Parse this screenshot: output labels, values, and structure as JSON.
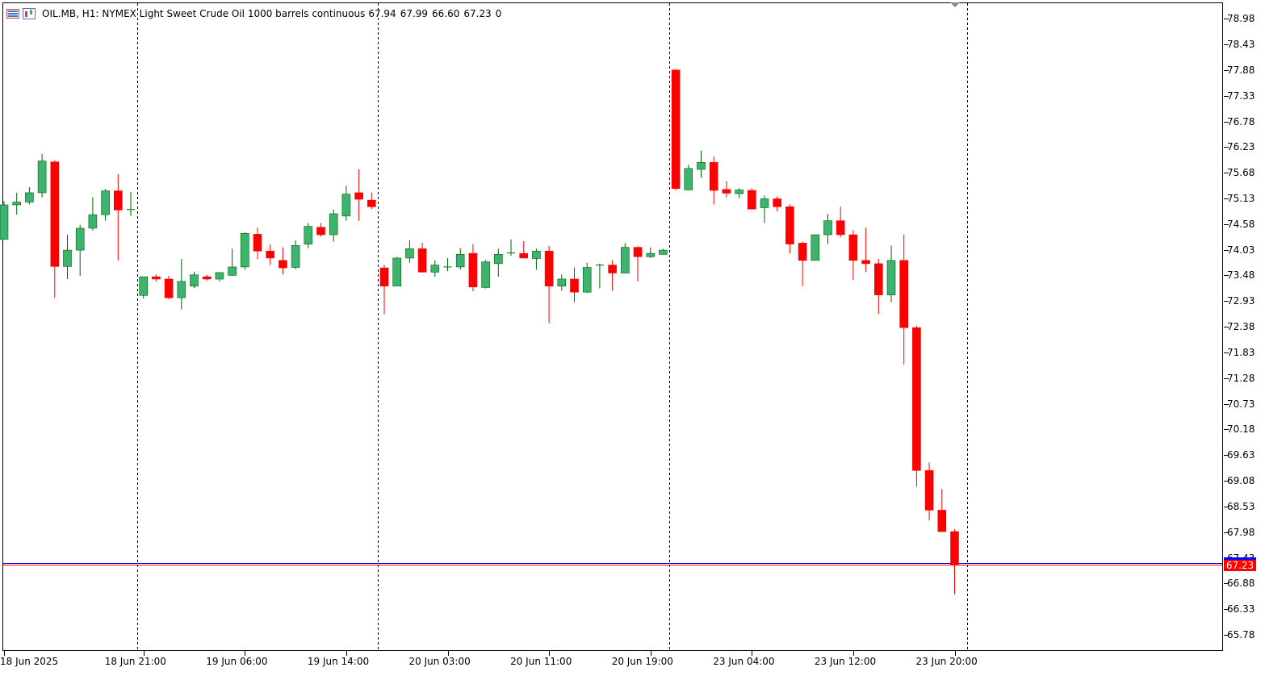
{
  "header": {
    "symbol_label": "OIL.MB, H1:",
    "description": "NYMEX Light Sweet Crude Oil 1000 barrels continuous",
    "ohlc": [
      "67.94",
      "67.99",
      "66.60",
      "67.23"
    ],
    "volume": "0",
    "icon_list": "list-view-icon",
    "icon_chart": "candle-chart-icon"
  },
  "colors": {
    "bull_body": "#3cb371",
    "bear_body": "#ff0000",
    "bull_wick": "#006400",
    "bear_wick": "#ff0000",
    "bid_line": "#ff0000",
    "ask_line": "#0000ff",
    "separator": "#000000",
    "badge": "#ff0000",
    "doji_highlight": "#00e000"
  },
  "price_badge": "67.23",
  "chart_data": {
    "type": "candlestick",
    "title": "",
    "grid": false,
    "ylim": [
      65.4,
      79.26
    ],
    "y_ticks": [
      "78.98",
      "78.43",
      "77.88",
      "77.33",
      "76.78",
      "76.23",
      "75.68",
      "75.13",
      "74.58",
      "74.03",
      "73.48",
      "72.93",
      "72.38",
      "71.83",
      "71.28",
      "70.73",
      "70.18",
      "69.63",
      "69.08",
      "68.53",
      "67.98",
      "67.43",
      "66.88",
      "66.33",
      "65.78"
    ],
    "x_labels": [
      "18 Jun 2025",
      "18 Jun 21:00",
      "19 Jun 06:00",
      "19 Jun 14:00",
      "20 Jun 03:00",
      "20 Jun 11:00",
      "20 Jun 19:00",
      "23 Jun 04:00",
      "23 Jun 12:00",
      "23 Jun 20:00"
    ],
    "x_label_bars": [
      0,
      11,
      19,
      27,
      35,
      43,
      51,
      59,
      67,
      75
    ],
    "session_separator_bars": [
      11,
      30,
      53
    ],
    "future_separator_bar": 76,
    "last_price": 67.23,
    "ask_price": 67.27,
    "candles": [
      [
        74.2,
        75.02,
        74.2,
        74.94
      ],
      [
        74.94,
        75.2,
        74.73,
        75.0
      ],
      [
        75.0,
        75.32,
        74.95,
        75.2
      ],
      [
        75.2,
        76.03,
        75.1,
        75.88
      ],
      [
        75.86,
        75.9,
        72.95,
        73.62
      ],
      [
        73.62,
        74.3,
        73.35,
        73.97
      ],
      [
        73.97,
        74.51,
        73.42,
        74.44
      ],
      [
        74.44,
        75.1,
        74.39,
        74.73
      ],
      [
        74.73,
        75.28,
        74.6,
        75.24
      ],
      [
        75.24,
        75.6,
        73.75,
        74.83
      ],
      [
        74.83,
        75.22,
        74.7,
        74.84
      ],
      [
        73.0,
        73.4,
        72.93,
        73.4
      ],
      [
        73.4,
        73.45,
        73.3,
        73.35
      ],
      [
        73.35,
        73.42,
        72.92,
        72.95
      ],
      [
        72.95,
        73.78,
        72.7,
        73.3
      ],
      [
        73.2,
        73.51,
        73.16,
        73.44
      ],
      [
        73.4,
        73.44,
        73.32,
        73.35
      ],
      [
        73.35,
        73.48,
        73.3,
        73.49
      ],
      [
        73.43,
        74.0,
        73.42,
        73.61
      ],
      [
        73.61,
        74.35,
        73.55,
        74.33
      ],
      [
        74.31,
        74.45,
        73.78,
        73.95
      ],
      [
        73.95,
        74.09,
        73.65,
        73.8
      ],
      [
        73.75,
        74.03,
        73.45,
        73.59
      ],
      [
        73.6,
        74.18,
        73.56,
        74.07
      ],
      [
        74.1,
        74.55,
        74.01,
        74.48
      ],
      [
        74.46,
        74.55,
        74.26,
        74.3
      ],
      [
        74.3,
        74.84,
        74.15,
        74.75
      ],
      [
        74.7,
        75.35,
        74.6,
        75.17
      ],
      [
        75.2,
        75.7,
        74.6,
        75.06
      ],
      [
        75.04,
        75.2,
        74.85,
        74.9
      ],
      [
        73.59,
        73.65,
        72.6,
        73.2
      ],
      [
        73.2,
        73.83,
        73.2,
        73.8
      ],
      [
        73.8,
        74.18,
        73.7,
        74.0
      ],
      [
        74.0,
        74.13,
        73.49,
        73.5
      ],
      [
        73.5,
        73.75,
        73.4,
        73.65
      ],
      [
        73.61,
        73.8,
        73.52,
        73.61
      ],
      [
        73.61,
        74.01,
        73.55,
        73.88
      ],
      [
        73.9,
        74.1,
        73.09,
        73.18
      ],
      [
        73.17,
        73.76,
        73.15,
        73.72
      ],
      [
        73.68,
        74.0,
        73.4,
        73.88
      ],
      [
        73.89,
        74.2,
        73.85,
        73.91
      ],
      [
        73.9,
        74.16,
        73.8,
        73.8
      ],
      [
        73.79,
        74.0,
        73.55,
        73.95
      ],
      [
        73.95,
        74.06,
        72.4,
        73.2
      ],
      [
        73.2,
        73.45,
        73.1,
        73.35
      ],
      [
        73.35,
        73.6,
        72.85,
        73.07
      ],
      [
        73.07,
        73.7,
        73.05,
        73.6
      ],
      [
        73.65,
        73.68,
        73.15,
        73.65
      ],
      [
        73.65,
        73.75,
        73.1,
        73.48
      ],
      [
        73.48,
        74.12,
        73.47,
        74.03
      ],
      [
        74.03,
        74.05,
        73.3,
        73.83
      ],
      [
        73.83,
        74.03,
        73.8,
        73.9
      ],
      [
        73.88,
        74.0,
        73.87,
        73.97
      ],
      [
        77.83,
        77.85,
        75.25,
        75.29
      ],
      [
        75.26,
        75.8,
        75.26,
        75.72
      ],
      [
        75.7,
        76.1,
        75.52,
        75.85
      ],
      [
        75.85,
        75.97,
        74.95,
        75.25
      ],
      [
        75.27,
        75.45,
        75.1,
        75.19
      ],
      [
        75.18,
        75.3,
        75.08,
        75.26
      ],
      [
        75.25,
        75.3,
        74.84,
        74.85
      ],
      [
        74.88,
        75.14,
        74.55,
        75.07
      ],
      [
        75.07,
        75.12,
        74.8,
        74.9
      ],
      [
        74.9,
        74.95,
        73.9,
        74.1
      ],
      [
        74.12,
        74.15,
        73.2,
        73.75
      ],
      [
        73.75,
        74.3,
        73.75,
        74.3
      ],
      [
        74.3,
        74.75,
        74.1,
        74.6
      ],
      [
        74.6,
        74.9,
        74.25,
        74.3
      ],
      [
        74.3,
        74.4,
        73.33,
        73.75
      ],
      [
        73.75,
        74.45,
        73.5,
        73.68
      ],
      [
        73.68,
        73.78,
        72.6,
        73.01
      ],
      [
        73.01,
        74.07,
        72.85,
        73.75
      ],
      [
        73.75,
        74.3,
        71.52,
        72.31
      ],
      [
        72.31,
        72.35,
        68.9,
        69.25
      ],
      [
        69.25,
        69.42,
        68.18,
        68.4
      ],
      [
        68.4,
        68.85,
        67.93,
        67.94
      ],
      [
        67.94,
        67.99,
        66.6,
        67.23
      ]
    ]
  }
}
